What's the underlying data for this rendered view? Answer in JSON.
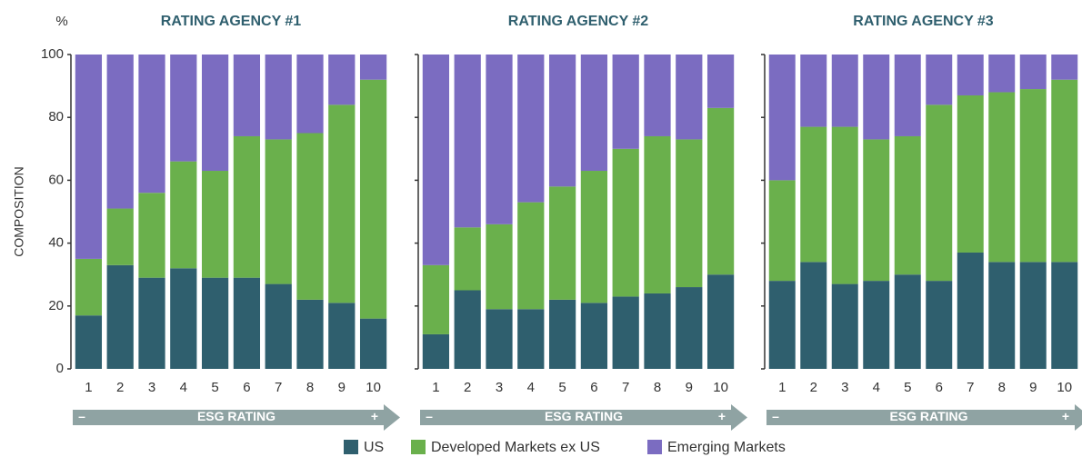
{
  "chart_data": [
    {
      "type": "stacked-bar",
      "title": "RATING AGENCY #1",
      "ylabel": "COMPOSITION",
      "yunit": "%",
      "xlabel": "ESG RATING",
      "x_low_label": "–",
      "x_high_label": "+",
      "categories": [
        "1",
        "2",
        "3",
        "4",
        "5",
        "6",
        "7",
        "8",
        "9",
        "10"
      ],
      "ylim": [
        0,
        100
      ],
      "yticks": [
        0,
        20,
        40,
        60,
        80,
        100
      ],
      "series": [
        {
          "name": "US",
          "color": "#2f5f6e",
          "values": [
            17,
            33,
            29,
            32,
            29,
            29,
            27,
            22,
            21,
            16
          ]
        },
        {
          "name": "Developed Markets ex US",
          "color": "#6ab04c",
          "values": [
            18,
            18,
            27,
            34,
            34,
            45,
            46,
            53,
            63,
            76
          ]
        },
        {
          "name": "Emerging Markets",
          "color": "#7b6cc1",
          "values": [
            65,
            49,
            44,
            34,
            37,
            26,
            27,
            25,
            16,
            8
          ]
        }
      ]
    },
    {
      "type": "stacked-bar",
      "title": "RATING AGENCY #2",
      "xlabel": "ESG RATING",
      "x_low_label": "–",
      "x_high_label": "+",
      "categories": [
        "1",
        "2",
        "3",
        "4",
        "5",
        "6",
        "7",
        "8",
        "9",
        "10"
      ],
      "ylim": [
        0,
        100
      ],
      "series": [
        {
          "color": "#2f5f6e",
          "values": [
            11,
            25,
            19,
            19,
            22,
            21,
            23,
            24,
            26,
            30
          ]
        },
        {
          "color": "#6ab04c",
          "values": [
            22,
            20,
            27,
            34,
            36,
            42,
            47,
            50,
            47,
            53
          ]
        },
        {
          "color": "#7b6cc1",
          "values": [
            67,
            55,
            54,
            47,
            42,
            37,
            30,
            26,
            27,
            17
          ]
        }
      ]
    },
    {
      "type": "stacked-bar",
      "title": "RATING AGENCY #3",
      "xlabel": "ESG RATING",
      "x_low_label": "–",
      "x_high_label": "+",
      "categories": [
        "1",
        "2",
        "3",
        "4",
        "5",
        "6",
        "7",
        "8",
        "9",
        "10"
      ],
      "ylim": [
        0,
        100
      ],
      "series": [
        {
          "color": "#2f5f6e",
          "values": [
            28,
            34,
            27,
            28,
            30,
            28,
            37,
            34,
            34,
            34
          ]
        },
        {
          "color": "#6ab04c",
          "values": [
            32,
            43,
            50,
            45,
            44,
            56,
            50,
            54,
            55,
            58
          ]
        },
        {
          "color": "#7b6cc1",
          "values": [
            40,
            23,
            23,
            27,
            26,
            16,
            13,
            12,
            11,
            8
          ]
        }
      ]
    }
  ]
}
